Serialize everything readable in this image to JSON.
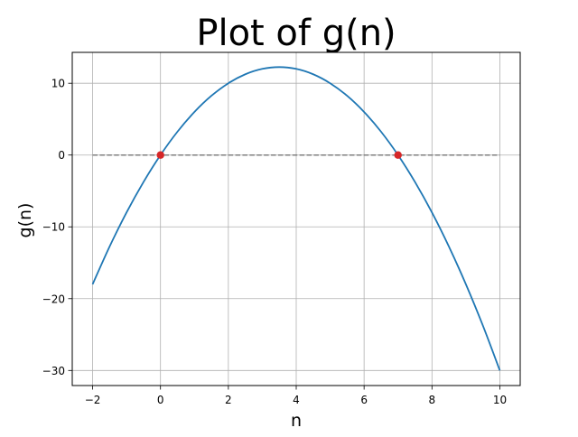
{
  "chart_data": {
    "type": "line",
    "title": "Plot of g(n)",
    "xlabel": "n",
    "ylabel": "g(n)",
    "xlim": [
      -2.6,
      10.6
    ],
    "ylim": [
      -32.1,
      14.3
    ],
    "xticks": [
      -2,
      0,
      2,
      4,
      6,
      8,
      10
    ],
    "yticks": [
      -30,
      -20,
      -10,
      0,
      10
    ],
    "ytick_labels": [
      "−30",
      "−20",
      "−10",
      "0",
      "10"
    ],
    "xtick_labels": [
      "−2",
      "0",
      "2",
      "4",
      "6",
      "8",
      "10"
    ],
    "grid": true,
    "legend": "none",
    "series": [
      {
        "color": "#1f77b4",
        "x": [
          -2,
          -1.5,
          -1,
          -0.5,
          0,
          0.5,
          1,
          1.5,
          2,
          2.5,
          3,
          3.5,
          4,
          4.5,
          5,
          5.5,
          6,
          6.5,
          7,
          7.5,
          8,
          8.5,
          9,
          9.5,
          10
        ],
        "y": [
          -18,
          -12.75,
          -8,
          -3.75,
          0,
          3.25,
          6,
          8.25,
          10,
          11.25,
          12,
          12.25,
          12,
          11.25,
          10,
          8.25,
          6,
          3.25,
          0,
          -3.75,
          -8,
          -12.75,
          -18,
          -23.75,
          -30
        ]
      }
    ],
    "reference_line": {
      "y": 0,
      "x_range": [
        -2,
        10
      ],
      "color": "#808080",
      "style": "dashed"
    },
    "points": {
      "x": [
        0,
        7
      ],
      "y": [
        0,
        0
      ],
      "color": "#d62728"
    }
  }
}
